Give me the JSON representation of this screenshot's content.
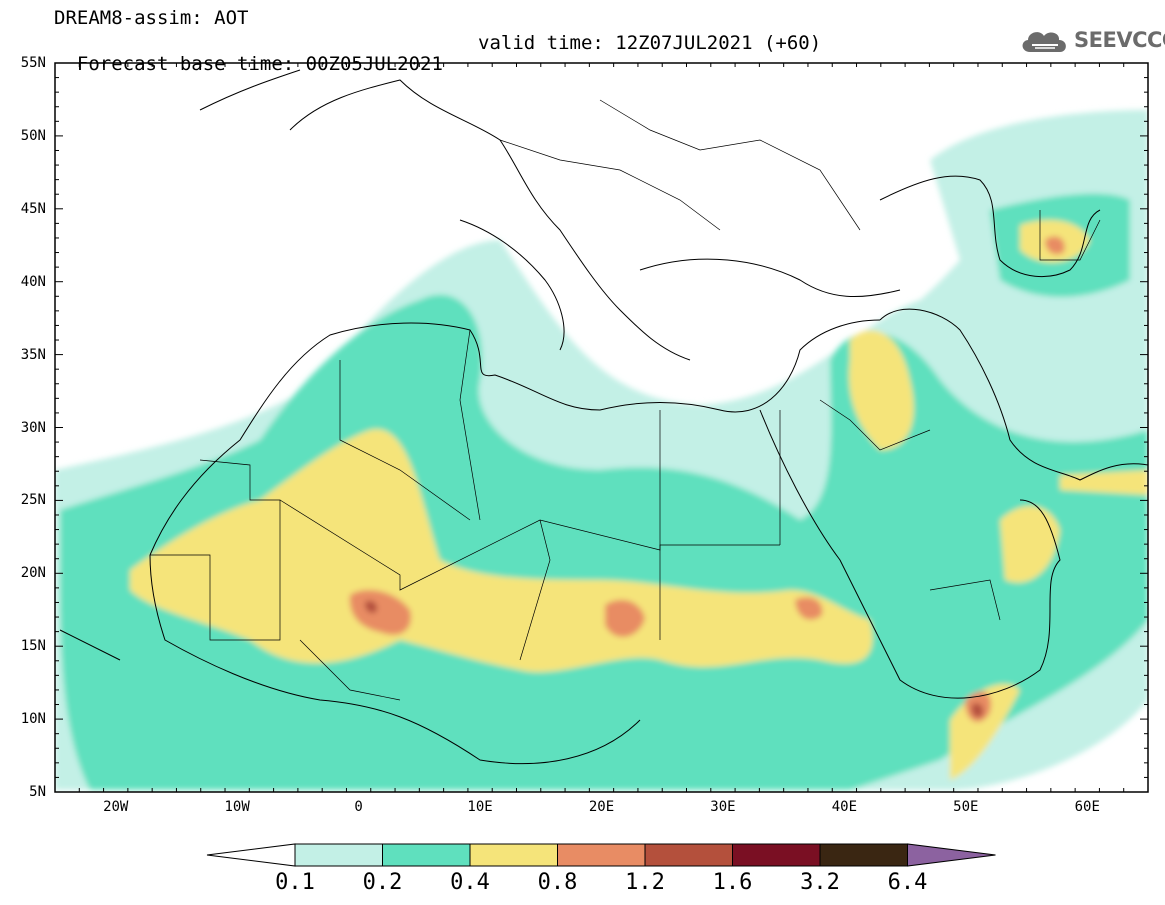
{
  "header": {
    "line1": "DREAM8-assim: AOT",
    "line2_base": "Forecast base time: 00Z05JUL2021",
    "line2_valid": "valid time: 12Z07JUL2021 (+60)",
    "logo_text": "SEEVCCC",
    "logo_icon": "cloud-icon"
  },
  "map": {
    "lon_range": [
      -25,
      65
    ],
    "lat_range": [
      5,
      55
    ],
    "lat_labels": [
      "55N",
      "50N",
      "45N",
      "40N",
      "35N",
      "30N",
      "25N",
      "20N",
      "15N",
      "10N",
      "5N"
    ],
    "lon_labels": [
      "20W",
      "10W",
      "0",
      "10E",
      "20E",
      "30E",
      "40E",
      "50E",
      "60E"
    ]
  },
  "colorbar": {
    "labels": [
      "0.1",
      "0.2",
      "0.4",
      "0.8",
      "1.2",
      "1.6",
      "3.2",
      "6.4"
    ],
    "colors": [
      "#ffffff",
      "#c3f0e6",
      "#5fe0be",
      "#f5e47a",
      "#e88c64",
      "#b4503c",
      "#7a0f23",
      "#3a2612",
      "#8c62a0"
    ]
  }
}
